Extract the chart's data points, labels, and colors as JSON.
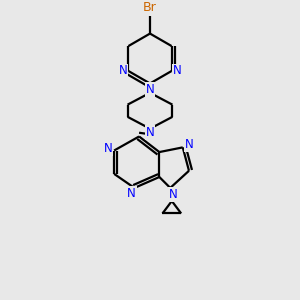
{
  "bg_color": "#e8e8e8",
  "bond_color": "#000000",
  "N_color": "#0000ff",
  "Br_color": "#cc6600",
  "line_width": 1.6,
  "font_size": 8.5,
  "fig_width": 3.0,
  "fig_height": 3.0,
  "dpi": 100,
  "xlim": [
    0.1,
    0.9
  ],
  "ylim": [
    0.05,
    0.98
  ]
}
